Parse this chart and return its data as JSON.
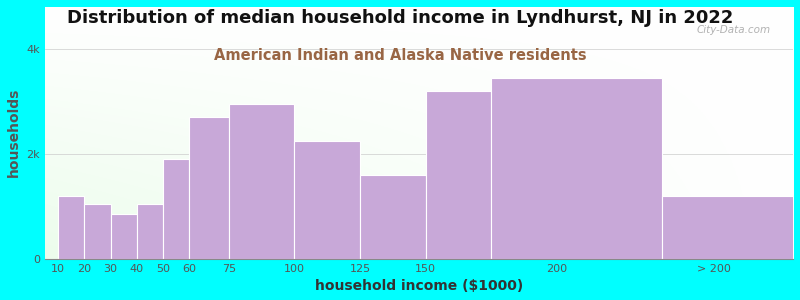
{
  "title": "Distribution of median household income in Lyndhurst, NJ in 2022",
  "subtitle": "American Indian and Alaska Native residents",
  "xlabel": "household income ($1000)",
  "ylabel": "households",
  "background_color": "#00FFFF",
  "bar_color": "#c8a8d8",
  "bar_edgecolor": "#ffffff",
  "ylim": [
    0,
    4800
  ],
  "yticks": [
    0,
    2000,
    4000
  ],
  "ytick_labels": [
    "0",
    "2k",
    "4k"
  ],
  "title_fontsize": 13,
  "subtitle_fontsize": 10.5,
  "axis_label_fontsize": 10,
  "watermark": "City-Data.com",
  "x_positions": [
    10,
    20,
    30,
    40,
    50,
    60,
    75,
    100,
    125,
    150,
    175,
    240
  ],
  "bar_widths": [
    10,
    10,
    10,
    10,
    10,
    15,
    25,
    25,
    25,
    25,
    65,
    60
  ],
  "values": [
    1200,
    1050,
    850,
    1050,
    1900,
    2700,
    2950,
    2250,
    1600,
    3200,
    3450,
    1200
  ],
  "xtick_positions": [
    10,
    20,
    30,
    40,
    50,
    60,
    75,
    100,
    125,
    150,
    200,
    260
  ],
  "xtick_labels": [
    "10",
    "20",
    "30",
    "40",
    "50",
    "60",
    "75",
    "100",
    "125",
    "150",
    "200",
    "> 200"
  ],
  "xlim_left": 5,
  "xlim_right": 290
}
